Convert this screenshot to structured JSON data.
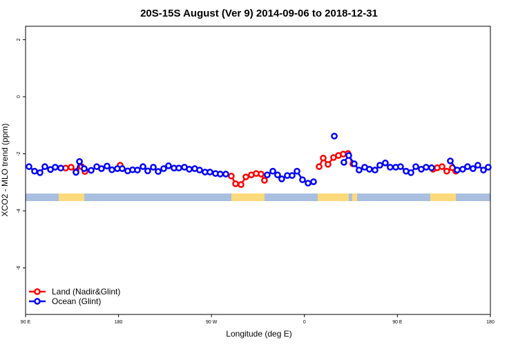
{
  "chart_data": {
    "type": "line",
    "title": "20S-15S August (Ver 9)   2014-09-06 to 2018-12-31",
    "x_label": "Longitude (deg E)",
    "y_label": "XCO2 - MLO trend (ppm)",
    "xlim": [
      90,
      540
    ],
    "xticks": [
      {
        "value": 90,
        "label": "90 E"
      },
      180,
      {
        "value": 270,
        "label": "90 W"
      },
      {
        "value": 360,
        "label": "0"
      },
      {
        "value": 450,
        "label": "90 E"
      },
      {
        "value": 540,
        "label": "180"
      }
    ],
    "ylim": [
      -7.63,
      2.47
    ],
    "yticks": [
      -6,
      -4,
      -2,
      0,
      2
    ],
    "legend": "bottom-left",
    "series": [
      {
        "name": "Land (Nadir&Glint)",
        "color": "#ff0000",
        "x": [
          128.8,
          134.1,
          138.8,
          144.2,
          147.5,
          181.6,
          289.2,
          293.3,
          298.6,
          303.3,
          308.6,
          313.3,
          318.0,
          321.3,
          374.2,
          378.2,
          382.8,
          388.2,
          392.9,
          397.6,
          402.2,
          406.9,
          484.5,
          488.5,
          493.2,
          497.8,
          503.2,
          506.5
        ],
        "values": [
          -2.5,
          -2.47,
          -2.62,
          -2.45,
          -2.62,
          -2.4,
          -2.78,
          -3.05,
          -3.08,
          -2.81,
          -2.74,
          -2.69,
          -2.71,
          -2.93,
          -2.45,
          -2.15,
          -2.37,
          -2.13,
          -2.06,
          -2.01,
          -1.99,
          -2.35,
          -2.54,
          -2.49,
          -2.45,
          -2.61,
          -2.49,
          -2.61
        ]
      },
      {
        "name": "Ocean (Glint)",
        "color": "#0000ff",
        "x": [
          93.3,
          98.7,
          104.0,
          108.7,
          114.1,
          118.7,
          124.1,
          138.8,
          142.2,
          146.8,
          153.5,
          158.9,
          163.5,
          168.9,
          173.6,
          178.9,
          183.6,
          188.9,
          193.6,
          198.3,
          203.7,
          208.3,
          213.7,
          218.4,
          223.7,
          228.4,
          233.7,
          238.4,
          243.8,
          248.5,
          253.8,
          258.5,
          263.8,
          268.5,
          273.9,
          278.5,
          283.9,
          324.0,
          329.4,
          334.0,
          338.0,
          343.4,
          348.1,
          352.8,
          358.1,
          363.5,
          368.8,
          388.9,
          398.2,
          402.9,
          408.2,
          412.9,
          418.3,
          422.9,
          428.3,
          433.0,
          438.3,
          443.0,
          448.4,
          453.0,
          458.4,
          463.1,
          467.8,
          473.1,
          477.8,
          483.1,
          501.2,
          507.9,
          513.2,
          517.9,
          523.2,
          527.9,
          533.3,
          537.9
        ],
        "values": [
          -2.45,
          -2.61,
          -2.66,
          -2.45,
          -2.55,
          -2.47,
          -2.5,
          -2.65,
          -2.27,
          -2.52,
          -2.58,
          -2.45,
          -2.52,
          -2.43,
          -2.56,
          -2.52,
          -2.52,
          -2.6,
          -2.56,
          -2.57,
          -2.45,
          -2.6,
          -2.47,
          -2.62,
          -2.52,
          -2.42,
          -2.5,
          -2.5,
          -2.47,
          -2.54,
          -2.52,
          -2.57,
          -2.64,
          -2.64,
          -2.69,
          -2.71,
          -2.71,
          -2.74,
          -2.61,
          -2.74,
          -2.88,
          -2.76,
          -2.76,
          -2.61,
          -2.91,
          -3.03,
          -2.98,
          -1.38,
          -2.3,
          -2.06,
          -2.35,
          -2.57,
          -2.47,
          -2.54,
          -2.57,
          -2.4,
          -2.32,
          -2.47,
          -2.47,
          -2.45,
          -2.61,
          -2.66,
          -2.45,
          -2.54,
          -2.47,
          -2.49,
          -2.25,
          -2.57,
          -2.54,
          -2.45,
          -2.52,
          -2.4,
          -2.57,
          -2.47
        ]
      }
    ]
  }
}
